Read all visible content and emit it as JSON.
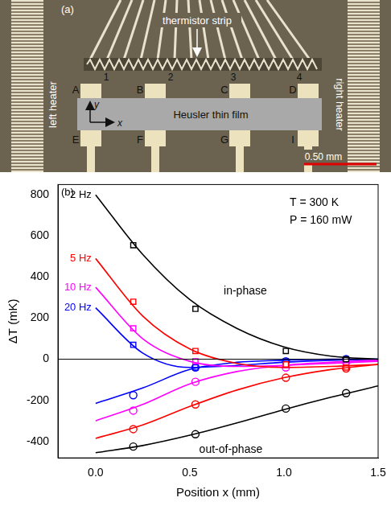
{
  "panel_a": {
    "label": "(a)",
    "thermistor_label": "thermistor strip",
    "film_label": "Heusler thin film",
    "left_heater": "left heater",
    "right_heater": "right heater",
    "top_contacts": [
      "A",
      "B",
      "C",
      "D"
    ],
    "bottom_contacts": [
      "E",
      "F",
      "G",
      "I"
    ],
    "thermistors": [
      "1",
      "2",
      "3",
      "4"
    ],
    "axes": [
      "x",
      "y"
    ],
    "scale_bar": "0.50 mm"
  },
  "chart_data": {
    "type": "scatter",
    "label": "(b)",
    "x_label": "Position x (mm)",
    "y_label": "ΔT (mK)",
    "xlim": [
      -0.2,
      1.5
    ],
    "ylim": [
      -480,
      850
    ],
    "xticks": [
      {
        "value": 0,
        "label": "0.0"
      },
      0.5,
      {
        "value": 1,
        "label": "1.0"
      },
      1.5
    ],
    "yticks": [
      -400,
      -200,
      0,
      200,
      400,
      600,
      800
    ],
    "grid": false,
    "reference_y": 0,
    "series": [
      {
        "name": "2 Hz",
        "color": "#000000",
        "in_phase": {
          "marker": "square",
          "x": [
            0.2,
            0.53,
            1.01,
            1.33
          ],
          "values": [
            555,
            245,
            40,
            0
          ]
        },
        "out_of_phase": {
          "marker": "circle",
          "x": [
            0.2,
            0.53,
            1.01,
            1.33
          ],
          "values": [
            -425,
            -365,
            -240,
            -165
          ]
        },
        "fit_in_phase": {
          "line_style": "solid",
          "x": [
            0,
            0.25,
            0.5,
            0.75,
            1.0,
            1.25,
            1.5
          ],
          "values": [
            800,
            510,
            290,
            150,
            60,
            15,
            0
          ]
        },
        "fit_out_of_phase": {
          "line_style": "solid",
          "x": [
            0,
            0.25,
            0.5,
            0.75,
            1.0,
            1.25,
            1.5
          ],
          "values": [
            -455,
            -420,
            -370,
            -310,
            -245,
            -185,
            -130
          ]
        }
      },
      {
        "name": "5 Hz",
        "color": "#ff0000",
        "in_phase": {
          "marker": "square",
          "x": [
            0.2,
            0.53,
            1.01,
            1.33
          ],
          "values": [
            280,
            40,
            -25,
            -40
          ]
        },
        "out_of_phase": {
          "marker": "circle",
          "x": [
            0.2,
            0.53,
            1.01,
            1.33
          ],
          "values": [
            -340,
            -220,
            -90,
            -45
          ]
        },
        "fit_in_phase": {
          "line_style": "solid",
          "x": [
            0,
            0.25,
            0.5,
            0.75,
            1.0,
            1.25,
            1.5
          ],
          "values": [
            490,
            210,
            50,
            -20,
            -40,
            -35,
            -25
          ]
        },
        "fit_out_of_phase": {
          "line_style": "solid",
          "x": [
            0,
            0.25,
            0.5,
            0.75,
            1.0,
            1.25,
            1.5
          ],
          "values": [
            -385,
            -320,
            -230,
            -150,
            -90,
            -50,
            -25
          ]
        }
      },
      {
        "name": "10 Hz",
        "color": "#ff00ff",
        "in_phase": {
          "marker": "square",
          "x": [
            0.2,
            0.53,
            1.01,
            1.33
          ],
          "values": [
            150,
            -10,
            -30,
            -15
          ]
        },
        "out_of_phase": {
          "marker": "circle",
          "x": [
            0.2,
            0.53,
            1.01,
            1.33
          ],
          "values": [
            -250,
            -110,
            -40,
            -15
          ]
        },
        "fit_in_phase": {
          "line_style": "solid",
          "x": [
            0,
            0.25,
            0.5,
            0.75,
            1.0,
            1.25,
            1.5
          ],
          "values": [
            350,
            100,
            -10,
            -35,
            -30,
            -20,
            -10
          ]
        },
        "fit_out_of_phase": {
          "line_style": "solid",
          "x": [
            0,
            0.25,
            0.5,
            0.75,
            1.0,
            1.25,
            1.5
          ],
          "values": [
            -300,
            -220,
            -120,
            -60,
            -30,
            -15,
            -5
          ]
        }
      },
      {
        "name": "20 Hz",
        "color": "#0000ff",
        "in_phase": {
          "marker": "square",
          "x": [
            0.2,
            0.53,
            1.01,
            1.33
          ],
          "values": [
            70,
            -40,
            -10,
            0
          ]
        },
        "out_of_phase": {
          "marker": "circle",
          "x": [
            0.2,
            0.53,
            1.01,
            1.33
          ],
          "values": [
            -175,
            -40,
            -10,
            0
          ]
        },
        "fit_in_phase": {
          "line_style": "solid",
          "x": [
            0,
            0.25,
            0.5,
            0.75,
            1.0,
            1.25,
            1.5
          ],
          "values": [
            250,
            30,
            -40,
            -30,
            -15,
            -5,
            0
          ]
        },
        "fit_out_of_phase": {
          "line_style": "solid",
          "x": [
            0,
            0.25,
            0.5,
            0.75,
            1.0,
            1.25,
            1.5
          ],
          "values": [
            -215,
            -140,
            -50,
            -15,
            -5,
            0,
            0
          ]
        }
      }
    ],
    "annotations": [
      {
        "text": "in-phase",
        "x": 0.68,
        "y": 330,
        "color": "#000000"
      },
      {
        "text": "out-of-phase",
        "x": 0.55,
        "y": -440,
        "color": "#000000"
      },
      {
        "text": "T = 300 K",
        "x": 1.03,
        "y": 760,
        "color": "#000000"
      },
      {
        "text": "P = 160 mW",
        "x": 1.03,
        "y": 675,
        "color": "#000000"
      }
    ]
  }
}
